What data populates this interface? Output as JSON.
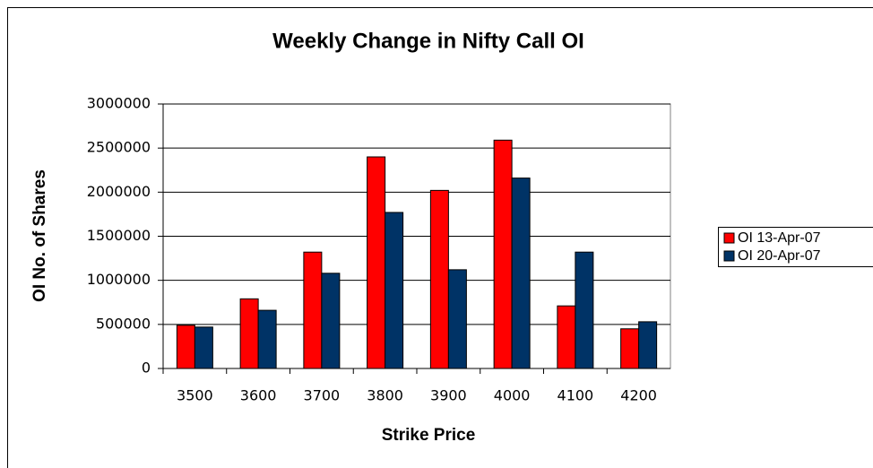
{
  "chart_data": {
    "type": "bar",
    "title": "Weekly Change in Nifty Call OI",
    "x_label": "Strike Price",
    "y_label": "OI No. of Shares",
    "categories": [
      "3500",
      "3600",
      "3700",
      "3800",
      "3900",
      "4000",
      "4100",
      "4200"
    ],
    "series": [
      {
        "name": "OI 13-Apr-07",
        "color": "#ff0000",
        "values": [
          490000,
          790000,
          1320000,
          2400000,
          2020000,
          2590000,
          710000,
          450000
        ]
      },
      {
        "name": "OI 20-Apr-07",
        "color": "#003366",
        "values": [
          470000,
          660000,
          1080000,
          1770000,
          1120000,
          2160000,
          1320000,
          530000
        ]
      }
    ],
    "ylim": [
      0,
      3000000
    ],
    "yticks": [
      0,
      500000,
      1000000,
      1500000,
      2000000,
      2500000,
      3000000
    ],
    "grid": true,
    "legend": "right"
  }
}
